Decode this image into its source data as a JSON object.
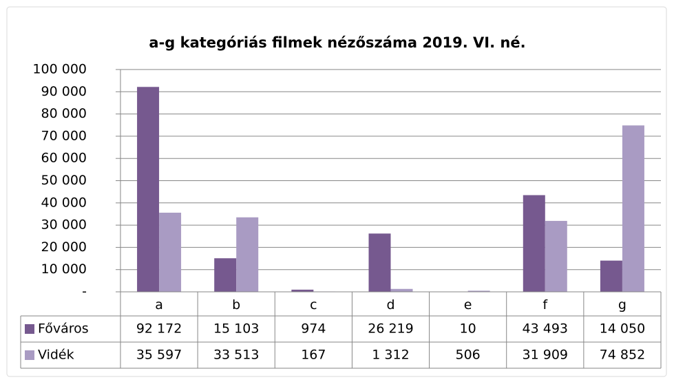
{
  "chart_data": {
    "type": "bar",
    "title": "a-g kategóriás filmek nézőszáma 2019. VI. né.",
    "categories": [
      "a",
      "b",
      "c",
      "d",
      "e",
      "f",
      "g"
    ],
    "series": [
      {
        "name": "Főváros",
        "color": "#76598f",
        "values": [
          92172,
          15103,
          974,
          26219,
          10,
          43493,
          14050
        ],
        "value_labels": [
          "92 172",
          "15 103",
          "974",
          "26 219",
          "10",
          "43 493",
          "14 050"
        ]
      },
      {
        "name": "Vidék",
        "color": "#a99bc3",
        "values": [
          35597,
          33513,
          167,
          1312,
          506,
          31909,
          74852
        ],
        "value_labels": [
          "35 597",
          "33 513",
          "167",
          "1 312",
          "506",
          "31 909",
          "74 852"
        ]
      }
    ],
    "ylim": [
      0,
      100000
    ],
    "yticks": [
      {
        "value": 0,
        "label": "-"
      },
      {
        "value": 10000,
        "label": "10 000"
      },
      {
        "value": 20000,
        "label": "20 000"
      },
      {
        "value": 30000,
        "label": "30 000"
      },
      {
        "value": 40000,
        "label": "40 000"
      },
      {
        "value": 50000,
        "label": "50 000"
      },
      {
        "value": 60000,
        "label": "60 000"
      },
      {
        "value": 70000,
        "label": "70 000"
      },
      {
        "value": 80000,
        "label": "80 000"
      },
      {
        "value": 90000,
        "label": "90 000"
      },
      {
        "value": 100000,
        "label": "100 000"
      }
    ],
    "grid": true,
    "legend": "table"
  }
}
